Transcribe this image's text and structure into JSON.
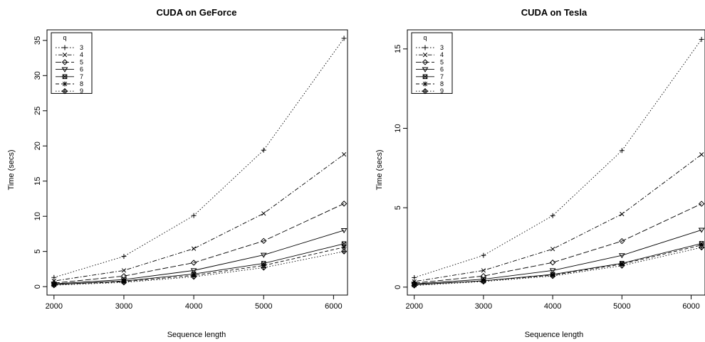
{
  "chart_data": [
    {
      "type": "line",
      "title": "CUDA on GeForce",
      "xlabel": "Sequence length",
      "ylabel": "Time (secs)",
      "x": [
        2000,
        3000,
        4000,
        5000,
        6150
      ],
      "xticks": [
        "2000",
        "3000",
        "4000",
        "5000",
        "6000"
      ],
      "xtick_values": [
        2000,
        3000,
        4000,
        5000,
        6000
      ],
      "yticks": [
        "0",
        "5",
        "10",
        "15",
        "20",
        "25",
        "30",
        "35"
      ],
      "ytick_values": [
        0,
        5,
        10,
        15,
        20,
        25,
        30,
        35
      ],
      "xlim": [
        1900,
        6200
      ],
      "ylim": [
        -1.2,
        36.5
      ],
      "grid": false,
      "legend_title": "q",
      "legend_position": "top-left",
      "series": [
        {
          "name": "3",
          "marker": "plus",
          "dash": "dotted",
          "values": [
            1.3,
            4.3,
            10.1,
            19.4,
            35.3
          ]
        },
        {
          "name": "4",
          "marker": "cross",
          "dash": "dotdash",
          "values": [
            0.8,
            2.3,
            5.4,
            10.4,
            18.8
          ]
        },
        {
          "name": "5",
          "marker": "diamond",
          "dash": "longdash",
          "values": [
            0.5,
            1.5,
            3.4,
            6.5,
            11.8
          ]
        },
        {
          "name": "6",
          "marker": "triangle-down",
          "dash": "solid",
          "values": [
            0.4,
            1.0,
            2.3,
            4.5,
            8.0
          ]
        },
        {
          "name": "7",
          "marker": "square-x",
          "dash": "solid",
          "values": [
            0.3,
            0.8,
            1.8,
            3.3,
            6.1
          ]
        },
        {
          "name": "8",
          "marker": "asterisk",
          "dash": "dashed",
          "values": [
            0.3,
            0.7,
            1.6,
            3.0,
            5.6
          ]
        },
        {
          "name": "9",
          "marker": "diamond-plus",
          "dash": "dotted",
          "values": [
            0.2,
            0.6,
            1.4,
            2.7,
            5.0
          ]
        }
      ]
    },
    {
      "type": "line",
      "title": "CUDA on Tesla",
      "xlabel": "Sequence length",
      "ylabel": "Time (secs)",
      "x": [
        2000,
        3000,
        4000,
        5000,
        6150
      ],
      "xticks": [
        "2000",
        "3000",
        "4000",
        "5000",
        "6000"
      ],
      "xtick_values": [
        2000,
        3000,
        4000,
        5000,
        6000
      ],
      "yticks": [
        "0",
        "5",
        "10",
        "15"
      ],
      "ytick_values": [
        0,
        5,
        10,
        15
      ],
      "xlim": [
        1900,
        6200
      ],
      "ylim": [
        -0.5,
        16.2
      ],
      "grid": false,
      "legend_title": "q",
      "legend_position": "top-left",
      "series": [
        {
          "name": "3",
          "marker": "plus",
          "dash": "dotted",
          "values": [
            0.6,
            2.0,
            4.5,
            8.6,
            15.6
          ]
        },
        {
          "name": "4",
          "marker": "cross",
          "dash": "dotdash",
          "values": [
            0.35,
            1.05,
            2.4,
            4.6,
            8.35
          ]
        },
        {
          "name": "5",
          "marker": "diamond",
          "dash": "longdash",
          "values": [
            0.25,
            0.7,
            1.55,
            2.9,
            5.25
          ]
        },
        {
          "name": "6",
          "marker": "triangle-down",
          "dash": "solid",
          "values": [
            0.2,
            0.5,
            1.05,
            2.0,
            3.6
          ]
        },
        {
          "name": "7",
          "marker": "square-x",
          "dash": "solid",
          "values": [
            0.15,
            0.4,
            0.8,
            1.5,
            2.75
          ]
        },
        {
          "name": "8",
          "marker": "asterisk",
          "dash": "dashed",
          "values": [
            0.15,
            0.4,
            0.75,
            1.45,
            2.65
          ]
        },
        {
          "name": "9",
          "marker": "diamond-plus",
          "dash": "dotted",
          "values": [
            0.1,
            0.35,
            0.7,
            1.35,
            2.5
          ]
        }
      ]
    }
  ]
}
